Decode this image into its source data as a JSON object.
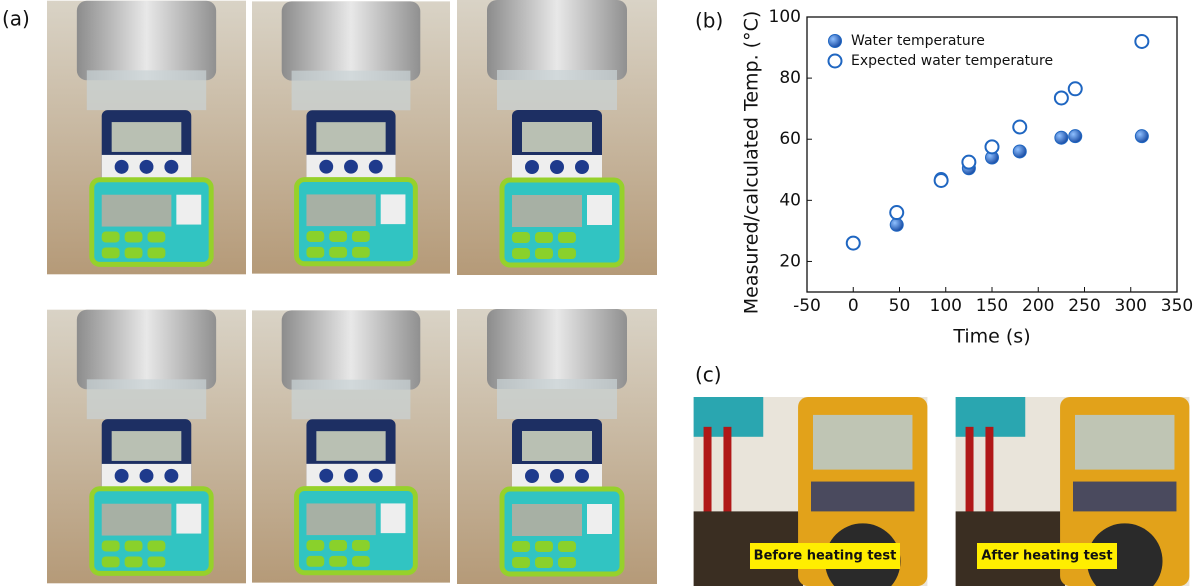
{
  "panels": [
    "(a)",
    "(b)",
    "(c)"
  ],
  "photo_captions": [
    "Before heating test",
    "After heating test"
  ],
  "chart_data": {
    "type": "scatter",
    "xlabel": "Time (s)",
    "ylabel": "Measured/calculated Temp. (°C)",
    "xlim": [
      -50,
      350
    ],
    "xticks": [
      -50,
      0,
      50,
      100,
      150,
      200,
      250,
      300,
      350
    ],
    "ylim": [
      10,
      100
    ],
    "yticks": [
      20,
      40,
      60,
      80,
      100
    ],
    "grid": false,
    "legend": "upper left",
    "series": [
      {
        "name": "Water temperature",
        "color": "#1f66c1",
        "filled": true,
        "x": [
          0,
          47,
          95,
          125,
          150,
          180,
          225,
          240,
          312
        ],
        "values": [
          26,
          32,
          47,
          50.5,
          54,
          56,
          60.5,
          61,
          61
        ]
      },
      {
        "name": "Expected water temperature",
        "color": "#1f66c1",
        "filled": false,
        "x": [
          0,
          47,
          95,
          125,
          150,
          180,
          225,
          240,
          312
        ],
        "values": [
          26,
          36,
          46.5,
          52.5,
          57.5,
          64,
          73.5,
          76.5,
          92
        ]
      }
    ]
  }
}
